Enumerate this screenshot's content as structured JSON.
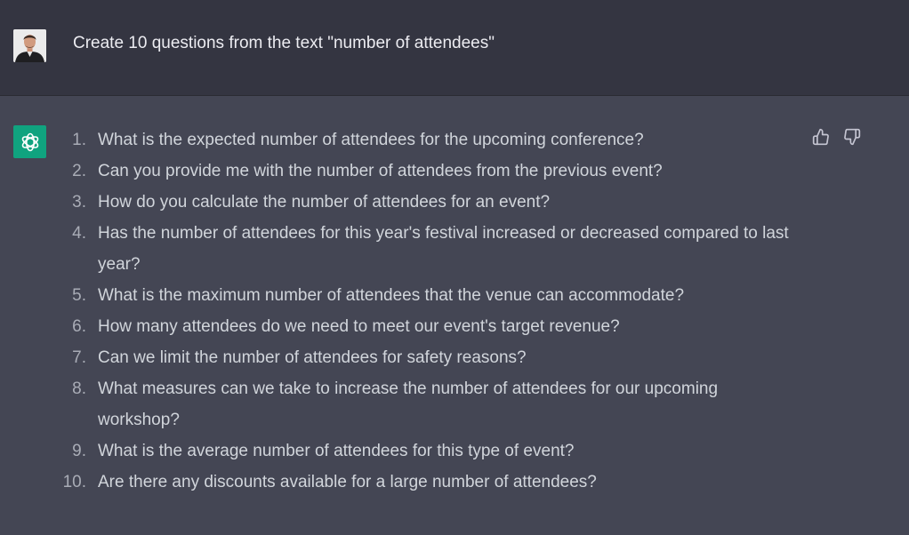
{
  "user_message": {
    "text": "Create 10 questions from the text \"number of attendees\""
  },
  "assistant_message": {
    "items": [
      {
        "num": "1.",
        "text": "What is the expected number of attendees for the upcoming conference?"
      },
      {
        "num": "2.",
        "text": "Can you provide me with the number of attendees from the previous event?"
      },
      {
        "num": "3.",
        "text": "How do you calculate the number of attendees for an event?"
      },
      {
        "num": "4.",
        "text": "Has the number of attendees for this year's festival increased or decreased compared to last year?"
      },
      {
        "num": "5.",
        "text": "What is the maximum number of attendees that the venue can accommodate?"
      },
      {
        "num": "6.",
        "text": "How many attendees do we need to meet our event's target revenue?"
      },
      {
        "num": "7.",
        "text": "Can we limit the number of attendees for safety reasons?"
      },
      {
        "num": "8.",
        "text": "What measures can we take to increase the number of attendees for our upcoming workshop?"
      },
      {
        "num": "9.",
        "text": "What is the average number of attendees for this type of event?"
      },
      {
        "num": "10.",
        "text": "Are there any discounts available for a large number of attendees?"
      }
    ]
  },
  "icons": {
    "user_avatar": "user-avatar-photo",
    "assistant_avatar": "openai-logo-icon",
    "like": "thumbs-up-icon",
    "dislike": "thumbs-down-icon"
  },
  "colors": {
    "user_bg": "#343541",
    "assistant_bg": "#444654",
    "brand": "#10a37f",
    "text": "#d1d5db"
  }
}
